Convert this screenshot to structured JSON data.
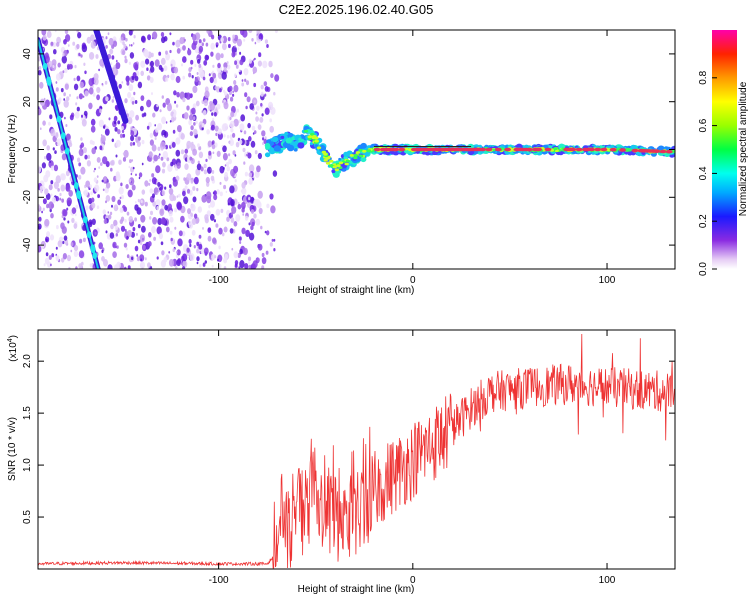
{
  "title": "C2E2.2025.196.02.40.G05",
  "colors": {
    "snr_line": "#ee3333",
    "track_core": "#e8305a",
    "scatter_dark": "#6a1fe0",
    "scatter_light": "#c9a8f2"
  },
  "colorbar": {
    "label": "Normalized spectral amplitude",
    "ticks": [
      "0.0",
      "0.2",
      "0.4",
      "0.6",
      "0.8"
    ],
    "tick_values": [
      0.0,
      0.2,
      0.4,
      0.6,
      0.8
    ],
    "range": [
      0,
      1
    ],
    "colormap": "rainbow (white, violet, blue, cyan, green, yellow, orange, red, magenta)"
  },
  "chart_data": [
    {
      "type": "scatter",
      "title": "C2E2.2025.196.02.40.G05",
      "xlabel": "Height of straight line (km)",
      "ylabel": "Frequency (Hz)",
      "xlim": [
        -193,
        135
      ],
      "ylim": [
        -50,
        50
      ],
      "xticks": [
        -100,
        0,
        100
      ],
      "xtick_labels": [
        "-100",
        "0",
        "100"
      ],
      "yticks": [
        -40,
        -20,
        0,
        20,
        40
      ],
      "ytick_labels": [
        "-40",
        "-20",
        "0",
        "20",
        "40"
      ],
      "grid": false,
      "features": {
        "noise_region_x": [
          -193,
          -70
        ],
        "diagonal_tracks": [
          {
            "x": [
              -193,
              -162
            ],
            "y": [
              46,
              -50
            ]
          },
          {
            "x": [
              -163,
              -148
            ],
            "y": [
              50,
              12
            ]
          }
        ],
        "signal_track": {
          "x": [
            -75,
            -65,
            -60,
            -55,
            -50,
            -45,
            -40,
            -35,
            -30,
            -25,
            -20,
            -10,
            0,
            20,
            60,
            100,
            135
          ],
          "y": [
            0,
            4,
            2,
            7,
            4,
            -3,
            -8,
            -5,
            -3,
            -1,
            0,
            0,
            0,
            0,
            0,
            0,
            -1
          ]
        }
      }
    },
    {
      "type": "line",
      "title": "",
      "xlabel": "Height of straight line (km)",
      "ylabel": "SNR (10 * v/v)",
      "y_multiplier": "(x10^4)",
      "y_multiplier_base": "(x10",
      "y_multiplier_exp": "4",
      "y_multiplier_close": ")",
      "xlim": [
        -193,
        135
      ],
      "ylim": [
        0,
        2.3
      ],
      "xticks": [
        -100,
        0,
        100
      ],
      "xtick_labels": [
        "-100",
        "0",
        "100"
      ],
      "yticks": [
        0.5,
        1.0,
        1.5,
        2.0
      ],
      "ytick_labels": [
        "0.5",
        "1.0",
        "1.5",
        "2.0"
      ],
      "grid": false,
      "series": [
        {
          "name": "",
          "x": [
            -193,
            -150,
            -100,
            -75,
            -68,
            -60,
            -50,
            -40,
            -30,
            -20,
            -10,
            0,
            10,
            20,
            30,
            40,
            60,
            80,
            100,
            120,
            135
          ],
          "y": [
            0.05,
            0.06,
            0.05,
            0.05,
            0.2,
            0.55,
            0.6,
            0.5,
            0.45,
            0.75,
            0.9,
            1.05,
            1.2,
            1.35,
            1.55,
            1.7,
            1.75,
            1.78,
            1.75,
            1.72,
            1.7
          ]
        }
      ]
    }
  ]
}
